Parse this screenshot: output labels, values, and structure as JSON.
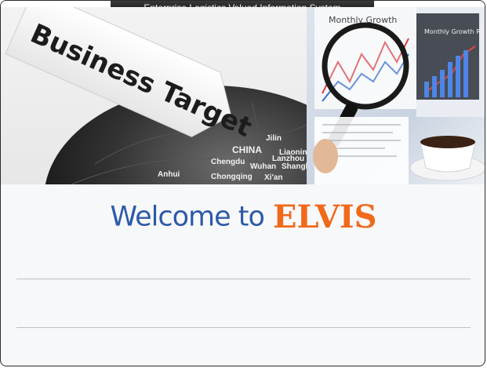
{
  "window": {
    "title": "Enterprise Logistics Valued Information System"
  },
  "banner": {
    "sign_text": "Business Target",
    "globe_labels": [
      "Jilin",
      "Liaoning",
      "CHINA",
      "Chengdu",
      "Wuhan",
      "Chongqing",
      "Xi'an",
      "Shanghai",
      "Lanzhou",
      "Anhui"
    ],
    "chart_text_left": "Monthly Growth",
    "chart_text_right": "Monthly Growth Ra"
  },
  "welcome": {
    "prefix": "Welcome to",
    "brand": "ELVIS"
  },
  "colors": {
    "welcome_blue": "#2d5aa8",
    "brand_orange": "#f06a1c",
    "title_bar": "#1a1a1a"
  }
}
